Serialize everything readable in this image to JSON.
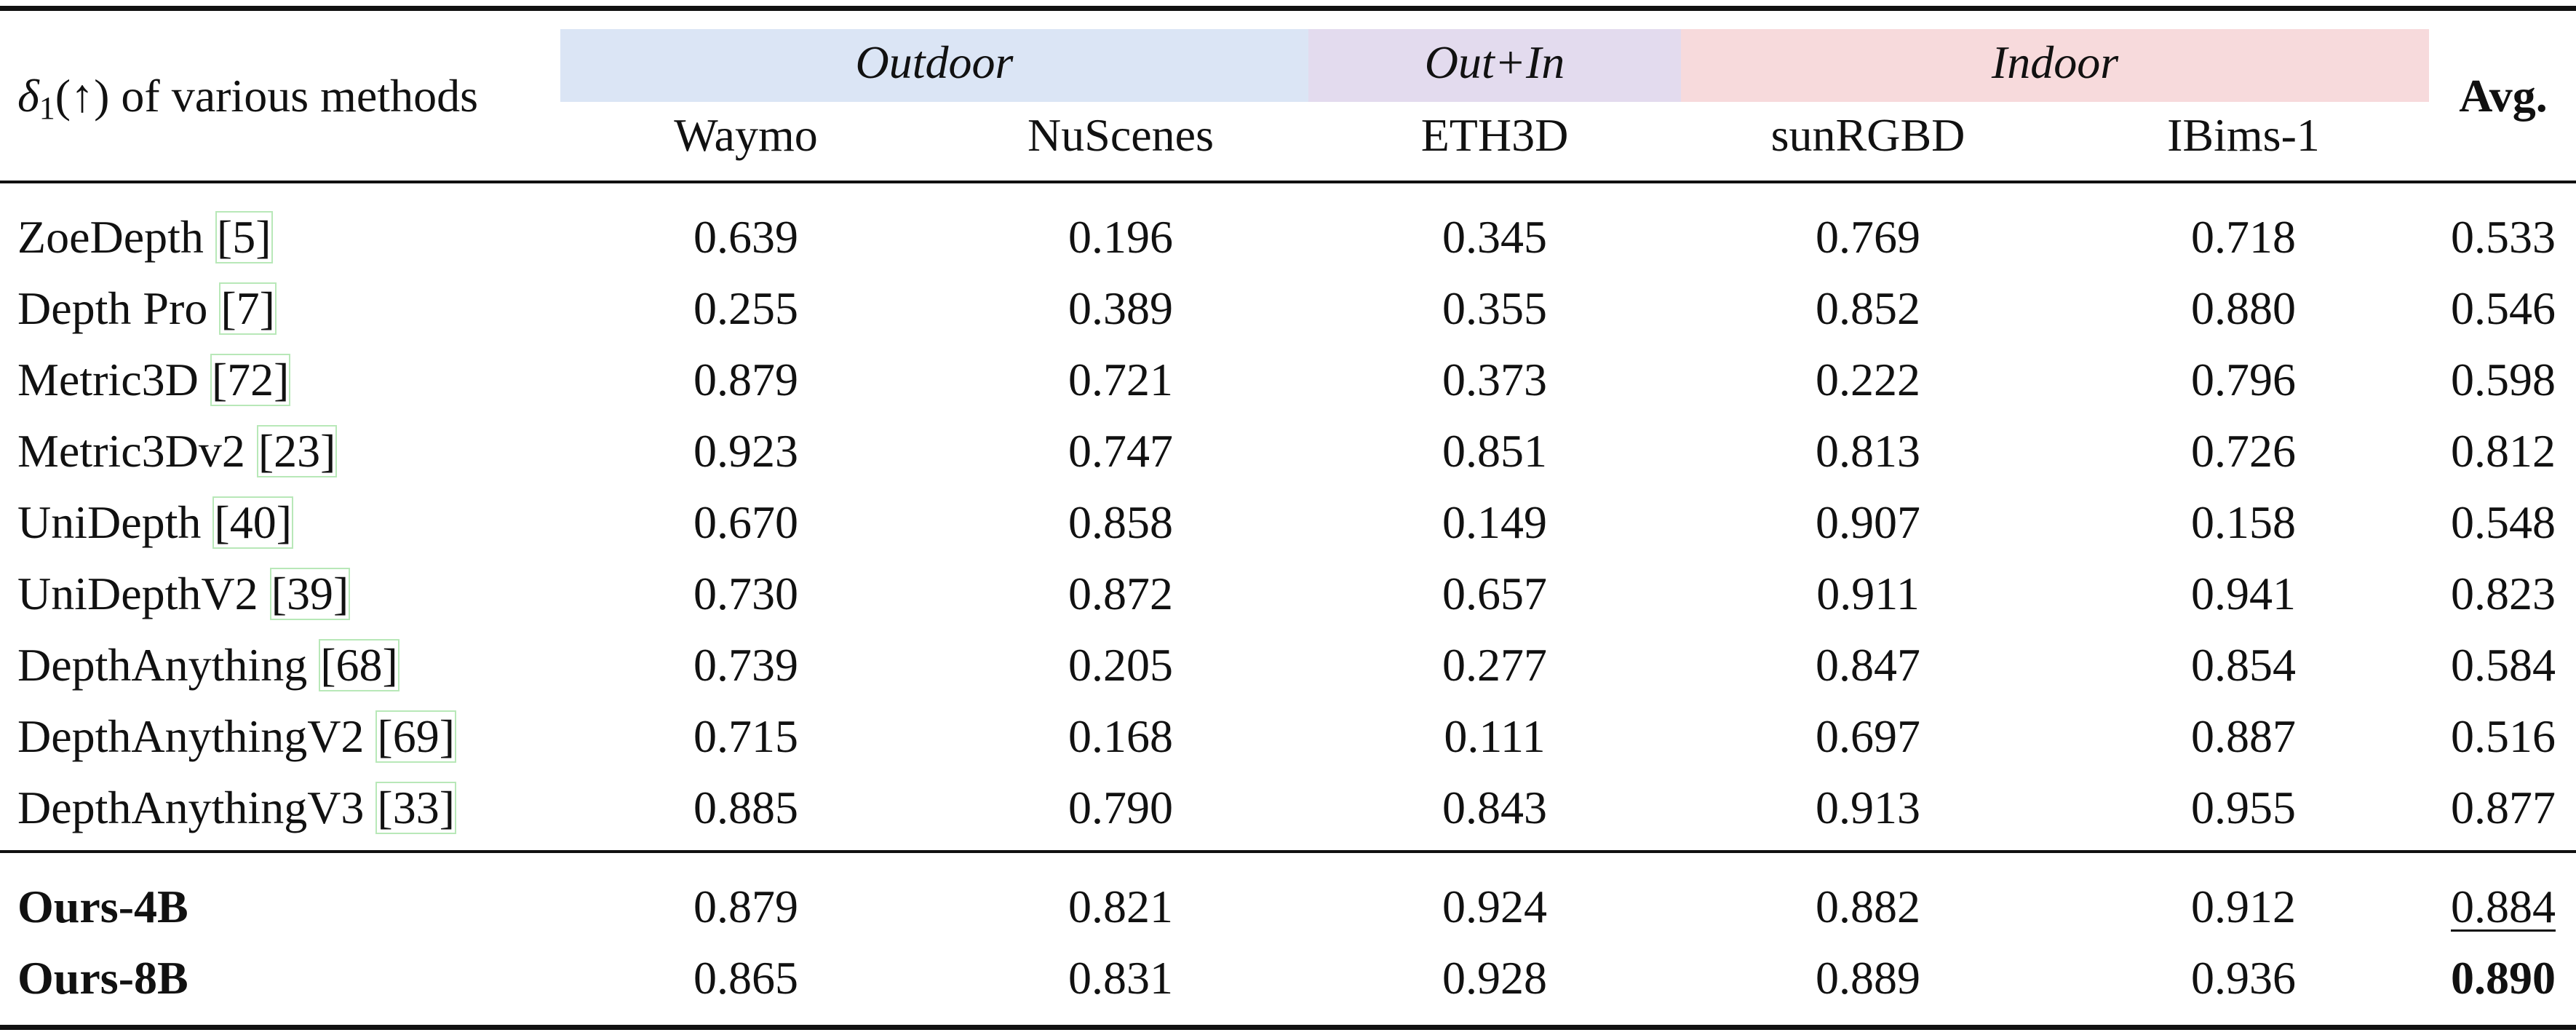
{
  "header": {
    "corner": {
      "symbol": "δ",
      "subscript": "1",
      "arrow": "(↑)",
      "text": " of various methods"
    },
    "groups": [
      {
        "label": "Outdoor",
        "color": "#dbe5f5"
      },
      {
        "label": "Out+In",
        "color": "#e3dbee"
      },
      {
        "label": "Indoor",
        "color": "#f7dadc"
      }
    ],
    "columns": [
      "Waymo",
      "NuScenes",
      "ETH3D",
      "sunRGBD",
      "IBims-1"
    ],
    "avg_label": "Avg."
  },
  "rows": [
    {
      "method": "ZoeDepth ",
      "cite": "[5]",
      "values": [
        "0.639",
        "0.196",
        "0.345",
        "0.769",
        "0.718"
      ],
      "avg": "0.533"
    },
    {
      "method": "Depth Pro ",
      "cite": "[7]",
      "values": [
        "0.255",
        "0.389",
        "0.355",
        "0.852",
        "0.880"
      ],
      "avg": "0.546"
    },
    {
      "method": "Metric3D ",
      "cite": "[72]",
      "values": [
        "0.879",
        "0.721",
        "0.373",
        "0.222",
        "0.796"
      ],
      "avg": "0.598"
    },
    {
      "method": "Metric3Dv2 ",
      "cite": "[23]",
      "values": [
        "0.923",
        "0.747",
        "0.851",
        "0.813",
        "0.726"
      ],
      "avg": "0.812"
    },
    {
      "method": "UniDepth ",
      "cite": "[40]",
      "values": [
        "0.670",
        "0.858",
        "0.149",
        "0.907",
        "0.158"
      ],
      "avg": "0.548"
    },
    {
      "method": "UniDepthV2 ",
      "cite": "[39]",
      "values": [
        "0.730",
        "0.872",
        "0.657",
        "0.911",
        "0.941"
      ],
      "avg": "0.823"
    },
    {
      "method": "DepthAnything ",
      "cite": "[68]",
      "values": [
        "0.739",
        "0.205",
        "0.277",
        "0.847",
        "0.854"
      ],
      "avg": "0.584"
    },
    {
      "method": "DepthAnythingV2 ",
      "cite": "[69]",
      "values": [
        "0.715",
        "0.168",
        "0.111",
        "0.697",
        "0.887"
      ],
      "avg": "0.516"
    },
    {
      "method": "DepthAnythingV3 ",
      "cite": "[33]",
      "values": [
        "0.885",
        "0.790",
        "0.843",
        "0.913",
        "0.955"
      ],
      "avg": "0.877"
    }
  ],
  "ours": [
    {
      "method": "Ours-4B",
      "values": [
        "0.879",
        "0.821",
        "0.924",
        "0.882",
        "0.912"
      ],
      "avg": "0.884"
    },
    {
      "method": "Ours-8B",
      "values": [
        "0.865",
        "0.831",
        "0.928",
        "0.889",
        "0.936"
      ],
      "avg": "0.890"
    }
  ]
}
